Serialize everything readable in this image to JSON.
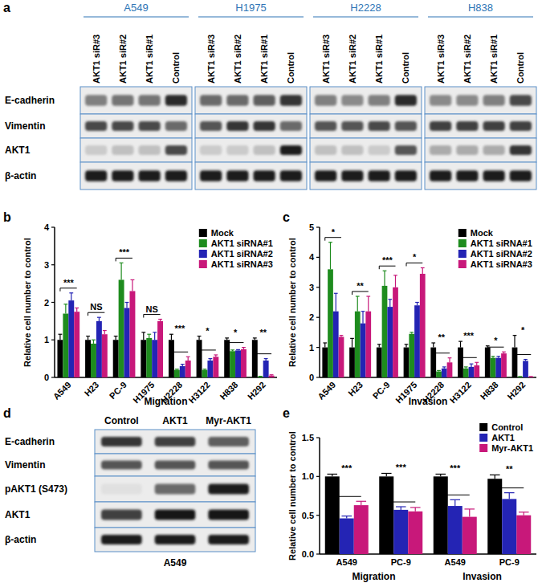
{
  "blot_a": {
    "panel": "a",
    "cell_lines": [
      "A549",
      "H1975",
      "H2228",
      "H838"
    ],
    "lanes": [
      "AKT1 siR#3",
      "AKT1 siR#2",
      "AKT1 siR#1",
      "Control"
    ],
    "proteins": [
      "E-cadherin",
      "Vimentin",
      "AKT1",
      "β-actin"
    ],
    "intensity": [
      [
        [
          0.5,
          0.55,
          0.55,
          0.9
        ],
        [
          0.75,
          0.75,
          0.75,
          0.6
        ],
        [
          0.15,
          0.2,
          0.2,
          0.75
        ],
        [
          0.95,
          0.95,
          0.95,
          0.95
        ]
      ],
      [
        [
          0.6,
          0.6,
          0.65,
          0.85
        ],
        [
          0.7,
          0.85,
          0.85,
          0.6
        ],
        [
          0.15,
          0.15,
          0.2,
          0.95
        ],
        [
          0.95,
          0.95,
          0.95,
          0.95
        ]
      ],
      [
        [
          0.5,
          0.45,
          0.5,
          0.9
        ],
        [
          0.7,
          0.7,
          0.75,
          0.7
        ],
        [
          0.2,
          0.2,
          0.15,
          0.7
        ],
        [
          0.95,
          0.95,
          0.95,
          0.95
        ]
      ],
      [
        [
          0.45,
          0.45,
          0.5,
          0.75
        ],
        [
          0.8,
          0.8,
          0.8,
          0.8
        ],
        [
          0.3,
          0.3,
          0.3,
          0.85
        ],
        [
          0.95,
          0.95,
          0.95,
          0.95
        ]
      ]
    ]
  },
  "chart_data": [
    {
      "panel": "b",
      "type": "bar",
      "y_label": "Relative cell number to control",
      "x_label": "Migration",
      "legend": "top-right",
      "categories": [
        "A549",
        "H23",
        "PC-9",
        "H1975",
        "H2228",
        "H3122",
        "H838",
        "H292"
      ],
      "ylim": [
        0,
        4
      ],
      "yticks": [
        0,
        1,
        2,
        3,
        4
      ],
      "significance": [
        "***",
        "NS",
        "***",
        "NS",
        "***",
        "*",
        "*",
        "**"
      ],
      "series": [
        {
          "name": "Mock",
          "color": "#000000",
          "values": [
            1.0,
            1.0,
            1.0,
            1.0,
            1.0,
            1.0,
            1.0,
            1.0
          ],
          "errors": [
            0.15,
            0.1,
            0.1,
            0.2,
            0.15,
            0.1,
            0.05,
            0.05
          ]
        },
        {
          "name": "AKT1 siRNA#1",
          "color": "#1e8c1e",
          "values": [
            1.7,
            0.9,
            2.6,
            1.05,
            0.2,
            0.2,
            0.7,
            0.02
          ],
          "errors": [
            0.25,
            0.1,
            0.45,
            0.1,
            0.02,
            0.02,
            0.03,
            0.01
          ]
        },
        {
          "name": "AKT1 siRNA#2",
          "color": "#2424b4",
          "values": [
            2.05,
            1.5,
            1.85,
            1.0,
            0.3,
            0.45,
            0.72,
            0.45
          ],
          "errors": [
            0.2,
            0.1,
            0.15,
            0.2,
            0.05,
            0.05,
            0.02,
            0.05
          ]
        },
        {
          "name": "AKT1 siRNA#3",
          "color": "#c8187a",
          "values": [
            1.75,
            1.15,
            2.3,
            1.5,
            0.45,
            0.55,
            0.75,
            0.05
          ],
          "errors": [
            0.1,
            0.1,
            0.3,
            0.05,
            0.1,
            0.05,
            0.05,
            0.02
          ]
        }
      ]
    },
    {
      "panel": "c",
      "type": "bar",
      "y_label": "Relative cell number to control",
      "x_label": "Invasion",
      "legend": "top-right",
      "categories": [
        "A549",
        "H23",
        "PC-9",
        "H1975",
        "H2228",
        "H3122",
        "H838",
        "H292"
      ],
      "ylim": [
        0,
        5
      ],
      "yticks": [
        0,
        1,
        2,
        3,
        4,
        5
      ],
      "significance": [
        "*",
        "**",
        "***",
        "*",
        "**",
        "***",
        "*",
        "*"
      ],
      "series": [
        {
          "name": "Mock",
          "color": "#000000",
          "values": [
            1.0,
            1.0,
            1.0,
            1.0,
            1.0,
            1.0,
            1.0,
            1.0
          ],
          "errors": [
            0.15,
            0.3,
            0.1,
            0.1,
            0.15,
            0.2,
            0.05,
            0.4
          ]
        },
        {
          "name": "AKT1 siRNA#1",
          "color": "#1e8c1e",
          "values": [
            3.6,
            2.2,
            3.05,
            1.45,
            0.2,
            0.3,
            0.65,
            0.02
          ],
          "errors": [
            0.9,
            0.5,
            0.5,
            0.05,
            0.03,
            0.05,
            0.05,
            0.01
          ]
        },
        {
          "name": "AKT1 siRNA#2",
          "color": "#2424b4",
          "values": [
            2.2,
            1.8,
            2.35,
            2.4,
            0.3,
            0.35,
            0.65,
            0.55
          ],
          "errors": [
            0.6,
            0.4,
            0.25,
            0.1,
            0.05,
            0.1,
            0.05,
            0.05
          ]
        },
        {
          "name": "AKT1 siRNA#3",
          "color": "#c8187a",
          "values": [
            1.35,
            2.2,
            3.0,
            3.45,
            0.5,
            0.4,
            0.8,
            0.02
          ],
          "errors": [
            0.05,
            0.5,
            0.4,
            0.2,
            0.15,
            0.1,
            0.05,
            0.01
          ]
        }
      ]
    },
    {
      "panel": "e",
      "type": "bar",
      "y_label": "Relative cell number to control",
      "legend": "top-right",
      "categories": [
        "A549",
        "PC-9",
        "A549",
        "PC-9"
      ],
      "groups": [
        {
          "label": "Migration",
          "size": 2
        },
        {
          "label": "Invasion",
          "size": 2
        }
      ],
      "ylim": [
        0,
        1.5
      ],
      "yticks": [
        {
          "value": 0,
          "label": "0.0"
        },
        {
          "value": 0.5,
          "label": "0.5"
        },
        {
          "value": 1,
          "label": "1.0"
        },
        {
          "value": 1.5,
          "label": "1.5"
        }
      ],
      "significance": [
        "***",
        "***",
        "***",
        "**"
      ],
      "series": [
        {
          "name": "Control",
          "color": "#000000",
          "values": [
            1.0,
            1.0,
            1.0,
            0.97
          ],
          "errors": [
            0.03,
            0.04,
            0.03,
            0.05
          ]
        },
        {
          "name": "AKT1",
          "color": "#2424b4",
          "values": [
            0.46,
            0.57,
            0.62,
            0.71
          ],
          "errors": [
            0.03,
            0.04,
            0.08,
            0.08
          ]
        },
        {
          "name": "Myr-AKT1",
          "color": "#c8187a",
          "values": [
            0.63,
            0.55,
            0.48,
            0.5
          ],
          "errors": [
            0.05,
            0.05,
            0.1,
            0.04
          ]
        }
      ]
    }
  ],
  "blot_d": {
    "panel": "d",
    "cell_line": "A549",
    "lanes": [
      "Control",
      "AKT1",
      "Myr-AKT1"
    ],
    "proteins": [
      "E-cadherin",
      "Vimentin",
      "pAKT1 (S473)",
      "AKT1",
      "β-actin"
    ],
    "intensity": [
      [
        0.85,
        0.8,
        0.65
      ],
      [
        0.7,
        0.7,
        0.7
      ],
      [
        0.05,
        0.6,
        0.95
      ],
      [
        0.8,
        1.0,
        1.0
      ],
      [
        0.95,
        0.95,
        0.95
      ]
    ]
  }
}
